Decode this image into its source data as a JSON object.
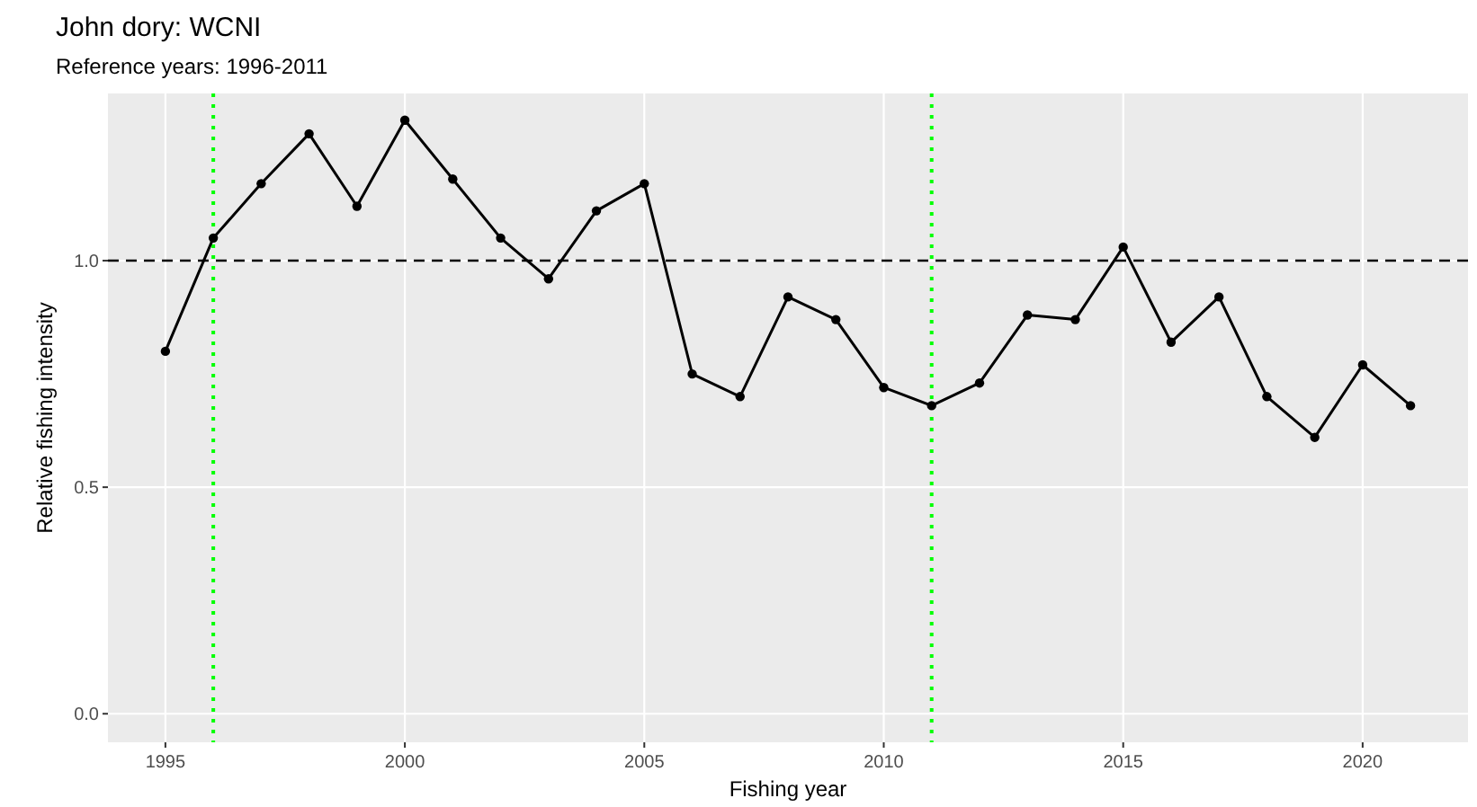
{
  "chart_data": {
    "type": "line",
    "title": "John dory: WCNI",
    "subtitle": "Reference years: 1996-2011",
    "xlabel": "Fishing year",
    "ylabel": "Relative fishing intensity",
    "x": [
      1995,
      1996,
      1997,
      1998,
      1999,
      2000,
      2001,
      2002,
      2003,
      2004,
      2005,
      2006,
      2007,
      2008,
      2009,
      2010,
      2011,
      2012,
      2013,
      2014,
      2015,
      2016,
      2017,
      2018,
      2019,
      2020,
      2021
    ],
    "series": [
      {
        "color": "#000000",
        "values": [
          0.8,
          1.05,
          1.17,
          1.28,
          1.12,
          1.31,
          1.18,
          1.05,
          0.96,
          1.11,
          1.17,
          0.75,
          0.7,
          0.92,
          0.87,
          0.72,
          0.68,
          0.73,
          0.88,
          0.87,
          1.03,
          0.82,
          0.92,
          0.7,
          0.61,
          0.77,
          0.68
        ]
      }
    ],
    "xlim": [
      1993.8,
      2022.2
    ],
    "ylim": [
      -0.063,
      1.369
    ],
    "xticks": [
      1995,
      2000,
      2005,
      2010,
      2015,
      2020
    ],
    "yticks": [
      {
        "value": 0,
        "label": "0.0"
      },
      {
        "value": 0.5,
        "label": "0.5"
      },
      {
        "value": 1,
        "label": "1.0"
      }
    ],
    "ref_lines": [
      {
        "axis": "y",
        "value": 1,
        "color": "#000000",
        "line_style": "dashed"
      },
      {
        "axis": "x",
        "value": 1996,
        "color": "#00ff00",
        "line_style": "dotted"
      },
      {
        "axis": "x",
        "value": 2011,
        "color": "#00ff00",
        "line_style": "dotted"
      }
    ],
    "grid": true,
    "marker": "circle",
    "line_style": "solid"
  }
}
